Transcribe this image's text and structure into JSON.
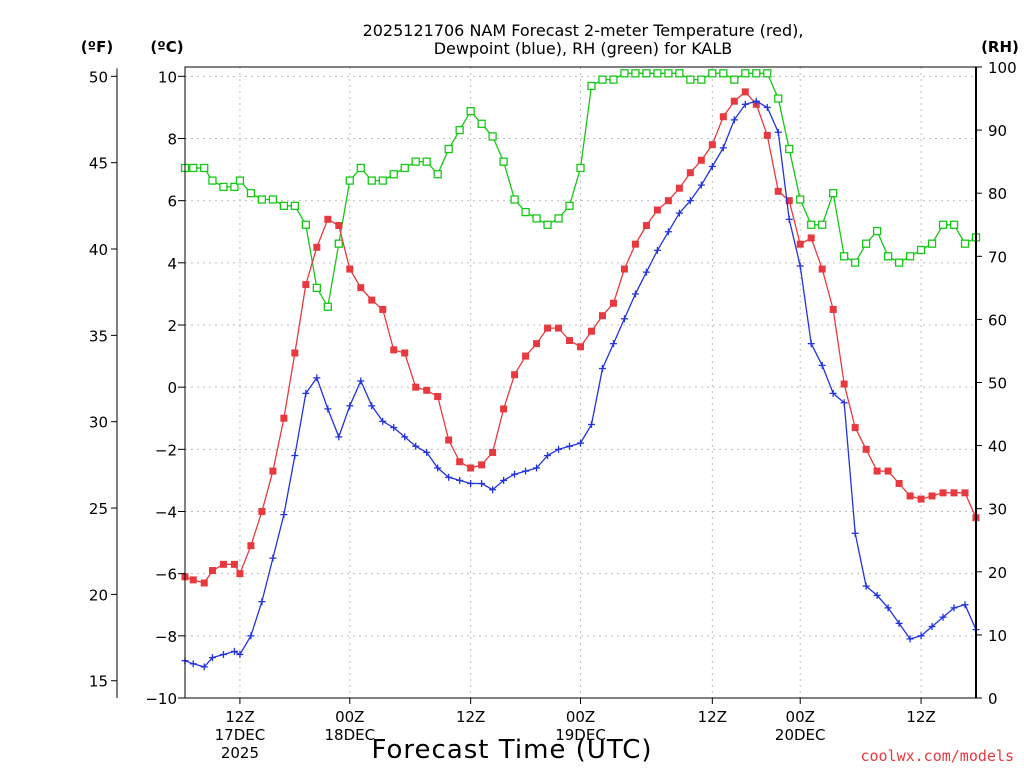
{
  "chart_data": {
    "type": "line",
    "title_line1": "2025121706 NAM Forecast 2-meter Temperature (red),",
    "title_line2": "Dewpoint (blue), RH (green) for KALB",
    "unit_left_f": "(ºF)",
    "unit_left_c": "(ºC)",
    "unit_right": "(RH)",
    "xlabel": "Forecast Time (UTC)",
    "watermark": "coolwx.com/models",
    "x_range_hours": [
      0,
      72
    ],
    "celsius_range": [
      -10,
      10.3
    ],
    "rh_range": [
      0,
      100
    ],
    "celsius_ticks": [
      "−10",
      "−8",
      "−6",
      "−4",
      "−2",
      "0",
      "2",
      "4",
      "6",
      "8",
      "10"
    ],
    "fahrenheit_ticks": [
      "15",
      "20",
      "25",
      "30",
      "35",
      "40",
      "45",
      "50"
    ],
    "rh_ticks": [
      "0",
      "10",
      "20",
      "30",
      "40",
      "50",
      "60",
      "70",
      "80",
      "90",
      "100"
    ],
    "x_ticks": [
      {
        "hour": 5,
        "lines": [
          "12Z",
          "17DEC",
          "2025"
        ]
      },
      {
        "hour": 15,
        "lines": [
          "00Z",
          "18DEC"
        ]
      },
      {
        "hour": 26,
        "lines": [
          "12Z"
        ]
      },
      {
        "hour": 36,
        "lines": [
          "00Z",
          "19DEC"
        ]
      },
      {
        "hour": 48,
        "lines": [
          "12Z"
        ]
      },
      {
        "hour": 56,
        "lines": [
          "00Z",
          "20DEC"
        ]
      },
      {
        "hour": 67,
        "lines": [
          "12Z"
        ]
      }
    ],
    "series": [
      {
        "name": "Temperature",
        "unit": "C",
        "color": "#e8393f",
        "marker": "filled-square",
        "x": [
          0,
          0.75,
          1.75,
          2.5,
          3.5,
          4.5,
          5,
          6,
          7,
          8,
          9,
          10,
          11,
          12,
          13,
          14,
          15,
          16,
          17,
          18,
          19,
          20,
          21,
          22,
          23,
          24,
          25,
          26,
          27,
          28,
          29,
          30,
          31,
          32,
          33,
          34,
          35,
          36,
          37,
          38,
          39,
          40,
          41,
          42,
          43,
          44,
          45,
          46,
          47,
          48,
          49,
          50,
          51,
          52,
          53,
          54,
          55,
          56,
          57,
          58,
          59,
          60,
          61,
          62,
          63,
          64,
          65,
          66,
          67,
          68,
          69,
          70,
          71,
          72
        ],
        "values": [
          -6.1,
          -6.2,
          -6.3,
          -5.9,
          -5.7,
          -5.7,
          -6,
          -5.1,
          -4,
          -2.7,
          -1,
          1.1,
          3.3,
          4.5,
          5.4,
          5.2,
          3.8,
          3.2,
          2.8,
          2.5,
          1.2,
          1.1,
          0,
          -0.1,
          -0.3,
          -1.7,
          -2.4,
          -2.6,
          -2.5,
          -2.1,
          -0.7,
          0.4,
          1.0,
          1.4,
          1.9,
          1.9,
          1.5,
          1.3,
          1.8,
          2.3,
          2.7,
          3.8,
          4.6,
          5.2,
          5.7,
          6.0,
          6.4,
          6.9,
          7.3,
          7.8,
          8.7,
          9.2,
          9.5,
          9.1,
          8.1,
          6.3,
          6.0,
          4.6,
          4.8,
          3.8,
          2.5,
          0.1,
          -1.3,
          -2.0,
          -2.7,
          -2.7,
          -3.1,
          -3.5,
          -3.6,
          -3.5,
          -3.4,
          -3.4,
          -3.4,
          -4.2
        ]
      },
      {
        "name": "Dewpoint",
        "unit": "C",
        "color": "#2233e0",
        "marker": "plus",
        "x": [
          0,
          0.75,
          1.75,
          2.5,
          3.5,
          4.5,
          5,
          6,
          7,
          8,
          9,
          10,
          11,
          12,
          13,
          14,
          15,
          16,
          17,
          18,
          19,
          20,
          21,
          22,
          23,
          24,
          25,
          26,
          27,
          28,
          29,
          30,
          31,
          32,
          33,
          34,
          35,
          36,
          37,
          38,
          39,
          40,
          41,
          42,
          43,
          44,
          45,
          46,
          47,
          48,
          49,
          50,
          51,
          52,
          53,
          54,
          55,
          56,
          57,
          58,
          59,
          60,
          61,
          62,
          63,
          64,
          65,
          66,
          67,
          68,
          69,
          70,
          71,
          72
        ],
        "values": [
          -8.8,
          -8.9,
          -9.0,
          -8.7,
          -8.6,
          -8.5,
          -8.6,
          -8.0,
          -6.9,
          -5.5,
          -4.1,
          -2.2,
          -0.2,
          0.3,
          -0.7,
          -1.6,
          -0.6,
          0.2,
          -0.6,
          -1.1,
          -1.3,
          -1.6,
          -1.9,
          -2.1,
          -2.6,
          -2.9,
          -3.0,
          -3.1,
          -3.1,
          -3.3,
          -3.0,
          -2.8,
          -2.7,
          -2.6,
          -2.2,
          -2.0,
          -1.9,
          -1.8,
          -1.2,
          0.6,
          1.4,
          2.2,
          3.0,
          3.7,
          4.4,
          5.0,
          5.6,
          6.0,
          6.5,
          7.1,
          7.7,
          8.6,
          9.1,
          9.2,
          9.0,
          8.2,
          5.4,
          3.9,
          1.4,
          0.7,
          -0.2,
          -0.5,
          -4.7,
          -6.4,
          -6.7,
          -7.1,
          -7.6,
          -8.1,
          -8.0,
          -7.7,
          -7.4,
          -7.1,
          -7.0,
          -7.8
        ]
      },
      {
        "name": "Relative Humidity",
        "unit": "%",
        "color": "#16c816",
        "marker": "open-square",
        "x": [
          0,
          0.75,
          1.75,
          2.5,
          3.5,
          4.5,
          5,
          6,
          7,
          8,
          9,
          10,
          11,
          12,
          13,
          14,
          15,
          16,
          17,
          18,
          19,
          20,
          21,
          22,
          23,
          24,
          25,
          26,
          27,
          28,
          29,
          30,
          31,
          32,
          33,
          34,
          35,
          36,
          37,
          38,
          39,
          40,
          41,
          42,
          43,
          44,
          45,
          46,
          47,
          48,
          49,
          50,
          51,
          52,
          53,
          54,
          55,
          56,
          57,
          58,
          59,
          60,
          61,
          62,
          63,
          64,
          65,
          66,
          67,
          68,
          69,
          70,
          71,
          72
        ],
        "values": [
          84,
          84,
          84,
          82,
          81,
          81,
          82,
          80,
          79,
          79,
          78,
          78,
          75,
          65,
          62,
          72,
          82,
          84,
          82,
          82,
          83,
          84,
          85,
          85,
          83,
          87,
          90,
          93,
          91,
          89,
          85,
          79,
          77,
          76,
          75,
          76,
          78,
          84,
          97,
          98,
          98,
          99,
          99,
          99,
          99,
          99,
          99,
          98,
          98,
          99,
          99,
          98,
          99,
          99,
          99,
          95,
          87,
          79,
          75,
          75,
          80,
          70,
          69,
          72,
          74,
          70,
          69,
          70,
          71,
          72,
          75,
          75,
          72,
          73
        ]
      }
    ]
  }
}
